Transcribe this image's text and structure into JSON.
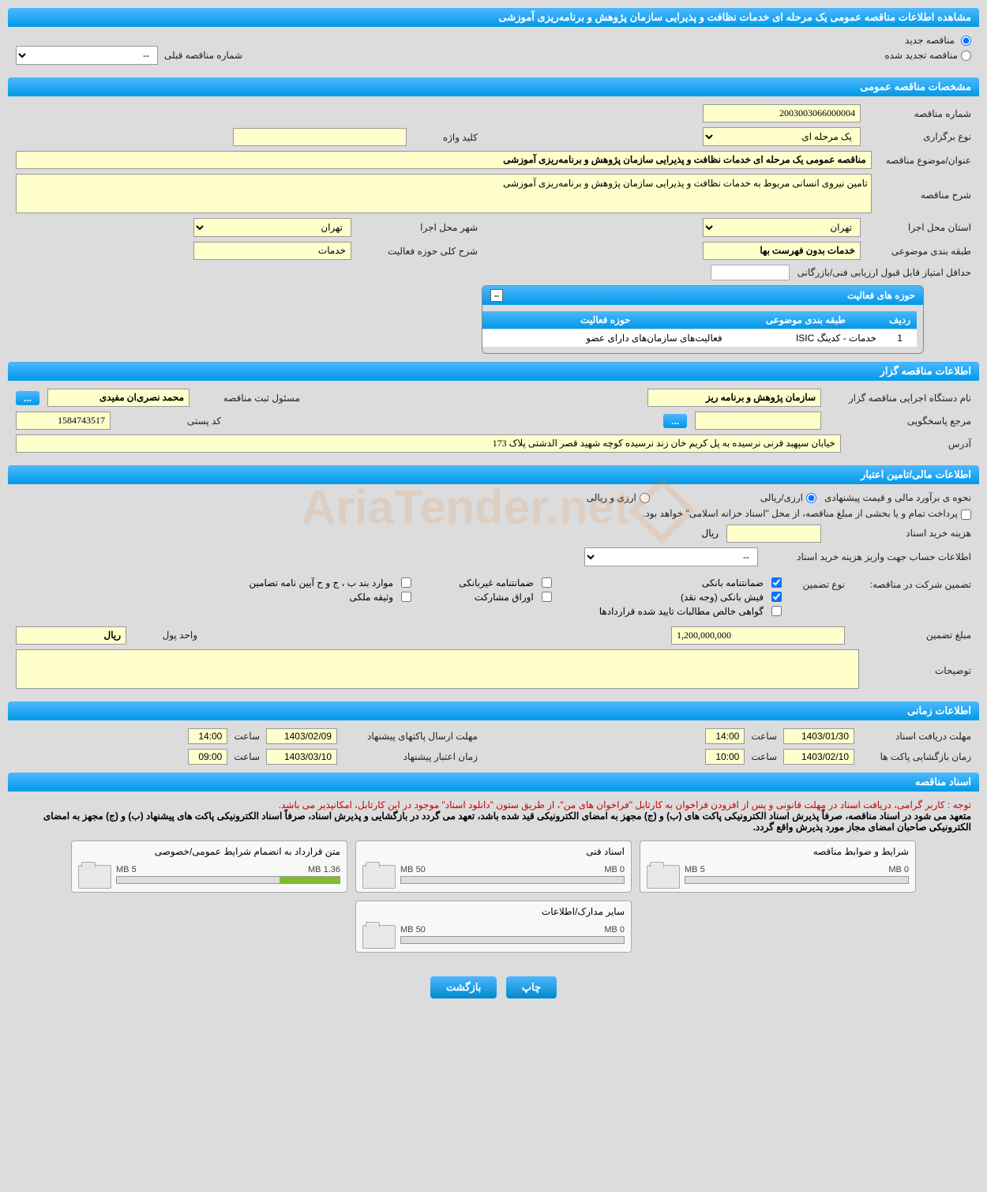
{
  "colors": {
    "header_grad_top": "#4db8ff",
    "header_grad_bottom": "#0099e6",
    "field_bg": "#ffffcc",
    "page_bg": "#dcdcdc",
    "note_red": "#cc0000",
    "progress_fill": "#7cbf2a"
  },
  "watermark": "AriaTender.net",
  "page_title": "مشاهده اطلاعات مناقصه عمومی یک مرحله ای خدمات نظافت و پذیرایی سازمان پژوهش و برنامه‌ریزی آموزشی",
  "radio": {
    "new_tender": "مناقصه جدید",
    "renewed_tender": "مناقصه تجدید شده"
  },
  "prev_number_label": "شماره مناقصه قبلی",
  "prev_number_value": "--",
  "sections": {
    "general": "مشخصات مناقصه عمومی",
    "owner": "اطلاعات مناقصه گزار",
    "financial": "اطلاعات مالی/تامین اعتبار",
    "timing": "اطلاعات زمانی",
    "docs": "اسناد مناقصه"
  },
  "general": {
    "number_label": "شماره مناقصه",
    "number": "2003003066000004",
    "type_label": "نوع برگزاری",
    "type": "یک مرحله ای",
    "keyword_label": "کلید واژه",
    "keyword": "",
    "subject_label": "عنوان/موضوع مناقصه",
    "subject": "مناقصه عمومی یک مرحله ای خدمات نظافت و پذیرایی سازمان پژوهش و برنامه‌ریزی آموزشی",
    "desc_label": "شرح مناقصه",
    "desc": "تامین نیروی انسانی مربوط به خدمات نظافت و پذیرایی سازمان پژوهش و برنامه‌ریزی آموزشی",
    "province_label": "استان محل اجرا",
    "province": "تهران",
    "city_label": "شهر محل اجرا",
    "city": "تهران",
    "category_label": "طبقه بندی موضوعی",
    "category": "خدمات بدون فهرست بها",
    "activity_desc_label": "شرح کلی حوزه فعالیت",
    "activity_desc": "خدمات",
    "min_score_label": "حداقل امتیاز قابل قبول ارزیابی فنی/بازرگانی",
    "min_score": ""
  },
  "activity_table": {
    "title": "حوزه های فعالیت",
    "cols": {
      "row": "ردیف",
      "category": "طبقه بندی موضوعی",
      "field": "حوزه فعالیت"
    },
    "rows": [
      {
        "n": "1",
        "category": "خدمات - کدینگ ISIC",
        "field": "فعالیت‌های سازمان‌های دارای عضو"
      }
    ]
  },
  "owner": {
    "org_label": "نام دستگاه اجرایی مناقصه گزار",
    "org": "سازمان پژوهش و برنامه ریز",
    "reg_officer_label": "مسئول ثبت مناقصه",
    "reg_officer": "محمد نصری‌ان مفیدی",
    "responder_label": "مرجع پاسخگویی",
    "responder": "",
    "postal_label": "کد پستی",
    "postal": "1584743517",
    "address_label": "آدرس",
    "address": "خیابان سپهبد قرنی نرسیده به پل کریم خان زند نرسیده کوچه شهید قصر الدشتی پلاک 173"
  },
  "financial": {
    "estimate_label": "نحوه ی برآورد مالی و قیمت پیشنهادی",
    "estimate_options": {
      "rial": "ارزی/ریالی",
      "arz": "ارزی و ریالی"
    },
    "treasury_note": "پرداخت تمام و یا بخشی از مبلغ مناقصه، از محل \"اسناد خزانه اسلامی\" خواهد بود.",
    "doc_cost_label": "هزینه خرید اسناد",
    "doc_cost": "",
    "doc_cost_unit": "ریال",
    "deposit_account_label": "اطلاعات حساب جهت واریز هزینه خرید اسناد",
    "deposit_account": "--",
    "guarantee_label": "تضمین شرکت در مناقصه:",
    "guarantee_type_label": "نوع تضمین",
    "guarantee_options": {
      "bank_guarantee": "ضمانتنامه بانکی",
      "nonbank_guarantee": "ضمانتنامه غیربانکی",
      "bylaw_items": "موارد بند ب ، ج و ح آیین نامه تضامین",
      "bank_slip": "فیش بانکی (وجه نقد)",
      "participation_bonds": "اوراق مشارکت",
      "property_deposit": "وثیقه ملکی",
      "net_claims_cert": "گواهی خالص مطالبات تایید شده قراردادها"
    },
    "guarantee_amount_label": "مبلغ تضمین",
    "guarantee_amount": "1,200,000,000",
    "currency_label": "واحد پول",
    "currency": "ریال",
    "notes_label": "توضیحات",
    "notes": ""
  },
  "timing": {
    "doc_deadline_label": "مهلت دریافت اسناد",
    "doc_deadline_date": "1403/01/30",
    "doc_deadline_time": "14:00",
    "bid_deadline_label": "مهلت ارسال پاکتهای پیشنهاد",
    "bid_deadline_date": "1403/02/09",
    "bid_deadline_time": "14:00",
    "open_time_label": "زمان بازگشایی پاکت ها",
    "open_date": "1403/02/10",
    "open_time": "10:00",
    "validity_label": "زمان اعتبار پیشنهاد",
    "validity_date": "1403/03/10",
    "validity_time": "09:00",
    "time_word": "ساعت"
  },
  "docs": {
    "note1": "توجه : کاربر گرامی، دریافت اسناد در مهلت قانونی و پس از افزودن فراخوان به کارتابل \"فراخوان های من\"، از طریق ستون \"دانلود اسناد\" موجود در این کارتابل، امکانپذیر می باشد.",
    "note2": "متعهد می شود در اسناد مناقصه، صرفاً پذیرش اسناد الکترونیکی پاکت های (ب) و (ج) مجهز به امضای الکترونیکی قید شده باشد، تعهد می گردد در بازگشایی و پذیرش اسناد، صرفاً اسناد الکترونیکی پاکت های پیشنهاد (ب) و (ج) مجهز به امضای الکترونیکی صاحبان امضای مجاز مورد پذیرش واقع گردد.",
    "cards": [
      {
        "title": "شرایط و ضوابط مناقصه",
        "used": "0 MB",
        "total": "5 MB",
        "fill": 0
      },
      {
        "title": "اسناد فنی",
        "used": "0 MB",
        "total": "50 MB",
        "fill": 0
      },
      {
        "title": "متن قرارداد به انضمام شرایط عمومی/خصوصی",
        "used": "1.36 MB",
        "total": "5 MB",
        "fill": 27
      },
      {
        "title": "سایر مدارک/اطلاعات",
        "used": "0 MB",
        "total": "50 MB",
        "fill": 0
      }
    ]
  },
  "footer": {
    "print": "چاپ",
    "back": "بازگشت"
  }
}
